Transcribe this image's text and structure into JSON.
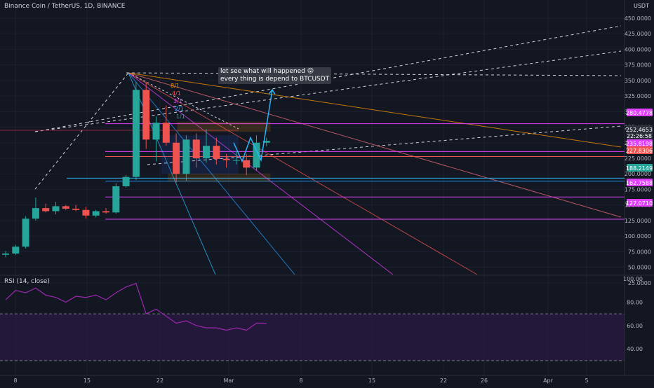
{
  "header": {
    "title": "Binance Coin / TetherUS, 1D, BINANCE",
    "currency": "USDT"
  },
  "annotation": {
    "line1": "let see what will happened 😲",
    "line2": "every thing is depend to BTCUSDT"
  },
  "rsi": {
    "label": "RSI (14, close)"
  },
  "fib_labels": [
    "8/1",
    "4/1",
    "3/1",
    "2/1",
    "1/1"
  ],
  "price_tags": [
    {
      "value": "280.4778",
      "color": "#e040fb"
    },
    {
      "value": "252.4653",
      "color": "#2a2e39"
    },
    {
      "value": "22:26:58",
      "color": "#2a2e39"
    },
    {
      "value": "235.8198",
      "color": "#e040fb"
    },
    {
      "value": "227.8306",
      "color": "#f05350"
    },
    {
      "value": "188.2149",
      "color": "#26a69a"
    },
    {
      "value": "162.7588",
      "color": "#e040fb"
    },
    {
      "value": "127.0710",
      "color": "#e040fb"
    }
  ],
  "chart_data": [
    {
      "type": "candlestick",
      "title": "Binance Coin / TetherUS, 1D, BINANCE",
      "y_unit": "USDT",
      "x_tick_labels": [
        "8",
        "15",
        "22",
        "Mar",
        "8",
        "15",
        "22",
        "26",
        "Apr",
        "5"
      ],
      "y_ticks": [
        "450.0000",
        "425.0000",
        "400.0000",
        "375.0000",
        "350.0000",
        "325.0000",
        "300.0000",
        "275.0000",
        "250.0000",
        "225.0000",
        "200.0000",
        "175.0000",
        "150.0000",
        "125.0000",
        "100.0000",
        "75.0000",
        "50.0000",
        "25.0000"
      ],
      "ylim": [
        0,
        460
      ],
      "horizontal_levels": [
        280.4778,
        235.8198,
        227.8306,
        188.2149,
        162.7588,
        127.071
      ],
      "candles": [
        {
          "o": 70,
          "h": 76,
          "l": 66,
          "c": 72
        },
        {
          "o": 72,
          "h": 86,
          "l": 70,
          "c": 83
        },
        {
          "o": 83,
          "h": 132,
          "l": 80,
          "c": 128
        },
        {
          "o": 128,
          "h": 162,
          "l": 125,
          "c": 145
        },
        {
          "o": 145,
          "h": 152,
          "l": 138,
          "c": 140
        },
        {
          "o": 140,
          "h": 155,
          "l": 135,
          "c": 148
        },
        {
          "o": 148,
          "h": 150,
          "l": 142,
          "c": 144
        },
        {
          "o": 144,
          "h": 150,
          "l": 140,
          "c": 142
        },
        {
          "o": 142,
          "h": 147,
          "l": 128,
          "c": 133
        },
        {
          "o": 133,
          "h": 142,
          "l": 130,
          "c": 140
        },
        {
          "o": 140,
          "h": 145,
          "l": 136,
          "c": 138
        },
        {
          "o": 138,
          "h": 185,
          "l": 136,
          "c": 180
        },
        {
          "o": 180,
          "h": 198,
          "l": 178,
          "c": 195
        },
        {
          "o": 195,
          "h": 348,
          "l": 190,
          "c": 335
        },
        {
          "o": 335,
          "h": 348,
          "l": 240,
          "c": 255
        },
        {
          "o": 255,
          "h": 292,
          "l": 220,
          "c": 282
        },
        {
          "o": 282,
          "h": 310,
          "l": 245,
          "c": 250
        },
        {
          "o": 250,
          "h": 265,
          "l": 186,
          "c": 200
        },
        {
          "o": 200,
          "h": 262,
          "l": 188,
          "c": 255
        },
        {
          "o": 255,
          "h": 265,
          "l": 210,
          "c": 225
        },
        {
          "o": 225,
          "h": 272,
          "l": 218,
          "c": 245
        },
        {
          "o": 245,
          "h": 258,
          "l": 215,
          "c": 224
        },
        {
          "o": 224,
          "h": 232,
          "l": 210,
          "c": 222
        },
        {
          "o": 222,
          "h": 236,
          "l": 215,
          "c": 222
        },
        {
          "o": 222,
          "h": 232,
          "l": 198,
          "c": 210
        },
        {
          "o": 210,
          "h": 262,
          "l": 205,
          "c": 250
        },
        {
          "o": 250,
          "h": 258,
          "l": 244,
          "c": 253
        }
      ]
    },
    {
      "type": "line",
      "title": "RSI (14, close)",
      "y_ticks": [
        "100.00",
        "80.00",
        "60.00",
        "40.00"
      ],
      "ylim": [
        25,
        100
      ],
      "values": [
        82,
        90,
        88,
        92,
        86,
        84,
        80,
        85,
        84,
        86,
        82,
        88,
        93,
        96,
        70,
        74,
        68,
        62,
        64,
        60,
        58,
        58,
        56,
        58,
        56,
        62,
        62
      ]
    }
  ]
}
